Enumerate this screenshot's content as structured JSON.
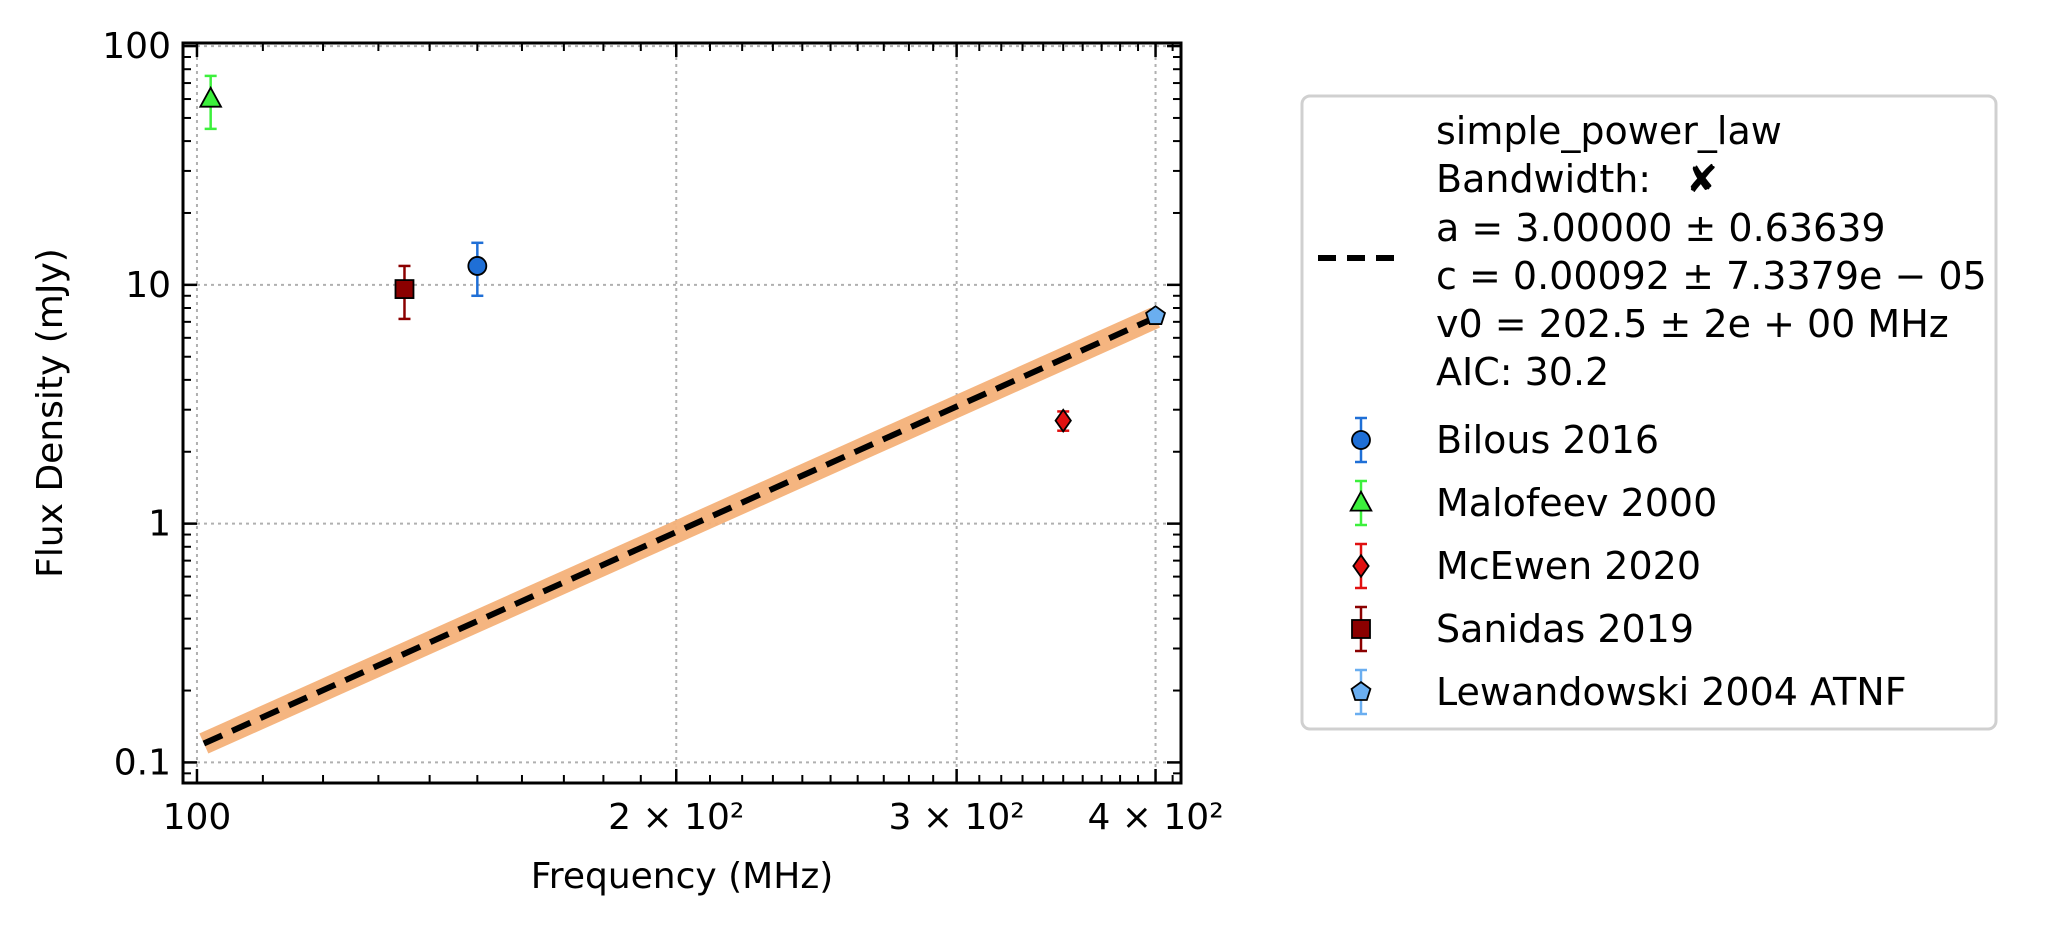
{
  "chart_data": {
    "type": "scatter",
    "xlabel": "Frequency (MHz)",
    "ylabel": "Flux Density (mJy)",
    "x_scale": "log",
    "y_scale": "log",
    "xlim": [
      98,
      415
    ],
    "ylim": [
      0.082,
      103
    ],
    "x_ticks": [
      {
        "value": 100,
        "label": "100"
      },
      {
        "value": 200,
        "label": "2 × 10²"
      },
      {
        "value": 300,
        "label": "3 × 10²"
      },
      {
        "value": 400,
        "label": "4 × 10²"
      }
    ],
    "y_ticks": [
      {
        "value": 100,
        "label": "100"
      },
      {
        "value": 10,
        "label": "10"
      },
      {
        "value": 1,
        "label": "1"
      },
      {
        "value": 0.1,
        "label": "0.1"
      }
    ],
    "grid": true,
    "legend_position": "outside-right",
    "fit": {
      "name": "simple_power_law",
      "bandwidth_label": "Bandwidth:",
      "bandwidth_mark": "✘",
      "param_lines": [
        "a = 3.00000 ± 0.63639",
        "c = 0.00092 ± 7.3379e − 05",
        "v0 = 202.5 ± 2e + 00 MHz",
        "AIC: 30.2"
      ],
      "x_range": [
        101,
        400
      ],
      "y_range": [
        0.12,
        7.3
      ],
      "line_color": "#000000",
      "band_color": "#f5b27a"
    },
    "series": [
      {
        "name": "Bilous 2016",
        "marker": "circle",
        "color": "#1f6fd6",
        "ecolor": "#1f6fd6",
        "points": [
          {
            "x": 150,
            "y": 12,
            "yerr_low": 9,
            "yerr_high": 15
          }
        ]
      },
      {
        "name": "Malofeev 2000",
        "marker": "triangle",
        "color": "#3cf03c",
        "ecolor": "#3cf03c",
        "points": [
          {
            "x": 102,
            "y": 60,
            "yerr_low": 45,
            "yerr_high": 75
          }
        ]
      },
      {
        "name": "McEwen 2020",
        "marker": "diamond",
        "color": "#e01010",
        "ecolor": "#e01010",
        "points": [
          {
            "x": 350,
            "y": 2.7,
            "yerr_low": 2.45,
            "yerr_high": 2.95
          }
        ]
      },
      {
        "name": "Sanidas 2019",
        "marker": "square",
        "color": "#8b0000",
        "ecolor": "#8b0000",
        "points": [
          {
            "x": 135,
            "y": 9.6,
            "yerr_low": 7.2,
            "yerr_high": 12
          }
        ]
      },
      {
        "name": "Lewandowski 2004 ATNF",
        "marker": "pentagon",
        "color": "#6aaef0",
        "ecolor": "#6aaef0",
        "points": [
          {
            "x": 400,
            "y": 7.4,
            "yerr_low": 7.2,
            "yerr_high": 7.6
          }
        ]
      }
    ]
  }
}
